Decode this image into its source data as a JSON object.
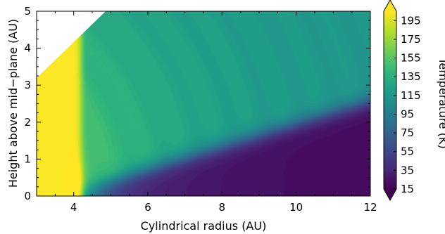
{
  "chart_data": {
    "type": "heatmap",
    "xlabel": "Cylindrical radius (AU)",
    "ylabel": "Height above mid−plane (AU)",
    "xlim": [
      3,
      12
    ],
    "ylim": [
      0,
      5
    ],
    "x_ticks": [
      "4",
      "6",
      "8",
      "10",
      "12"
    ],
    "y_ticks": [
      "0",
      "1",
      "2",
      "3",
      "4",
      "5"
    ],
    "colorbar": {
      "label": "Temperature (K)",
      "range": [
        15,
        205
      ],
      "ticks": [
        "15",
        "35",
        "55",
        "75",
        "95",
        "115",
        "135",
        "155",
        "175",
        "195"
      ],
      "extend": "both",
      "colormap": "viridis"
    },
    "masked_region": "upper-left (no data)",
    "features": {
      "hot_inner_rim_temperature_K": 200,
      "hot_inner_rim_radius_AU": 4.2,
      "cold_midplane_temperature_K": 20,
      "surface_layer_temperature_K": 110
    }
  },
  "colors": {
    "viridis": [
      "#440154",
      "#482878",
      "#3e4989",
      "#31688e",
      "#26828e",
      "#1f9e89",
      "#35b779",
      "#6ece58",
      "#b5de2b",
      "#fde725"
    ]
  }
}
